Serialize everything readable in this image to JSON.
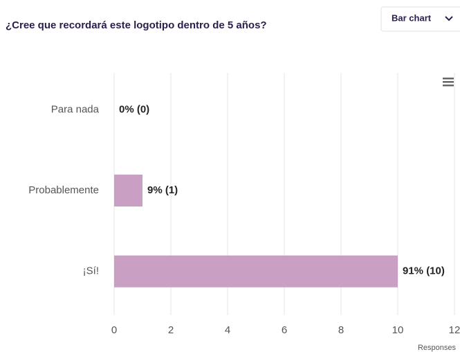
{
  "header": {
    "title": "¿Cree que recordará este logotipo dentro de 5 años?",
    "dropdown": "Bar chart"
  },
  "chart_data": {
    "type": "hbar",
    "categories": [
      "Para nada",
      "Probablemente",
      "¡Sí!"
    ],
    "values": [
      0,
      1,
      10
    ],
    "value_labels": [
      "0% (0)",
      "9% (1)",
      "91% (10)"
    ],
    "color": "#c9a0c4",
    "xlabel": "Responses",
    "xlim": [
      0,
      12
    ],
    "xticks": [
      0,
      2,
      4,
      6,
      8,
      10,
      12
    ],
    "grid": true
  }
}
